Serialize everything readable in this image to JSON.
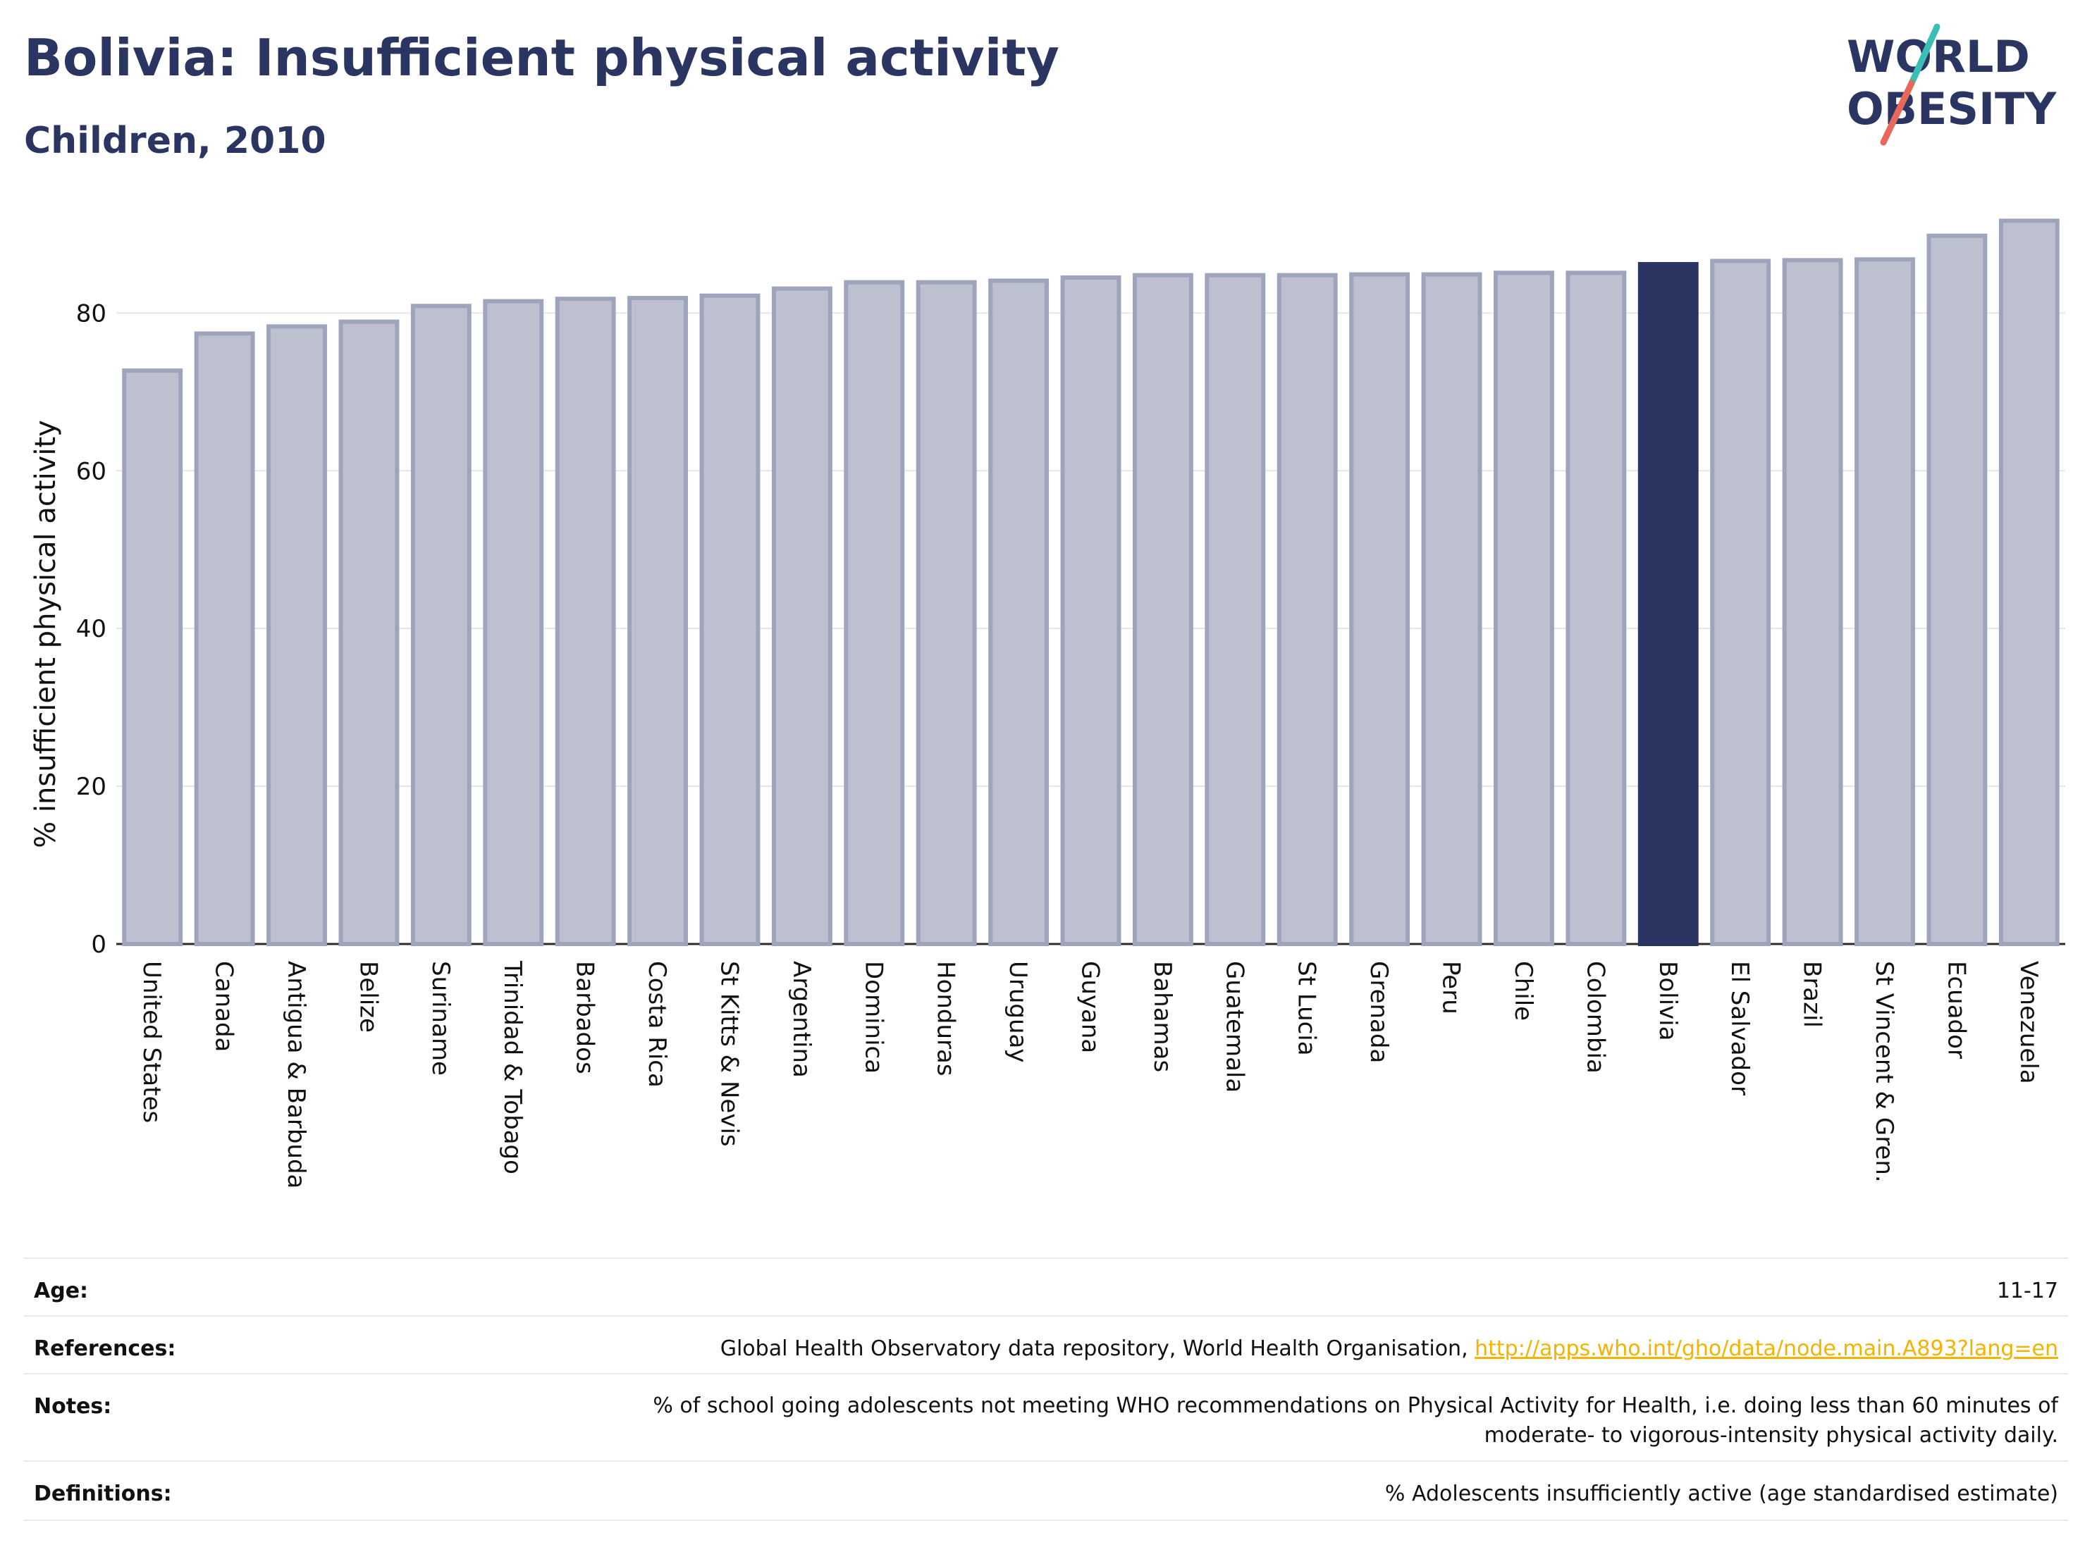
{
  "header": {
    "title": "Bolivia: Insufficient physical activity",
    "subtitle": "Children, 2010",
    "logo_text_line1": "WORLD",
    "logo_text_line2": "OBESITY"
  },
  "colors": {
    "title": "#2b3561",
    "bar_default": "#bcc0cf",
    "bar_default_stroke": "#9ea4bb",
    "bar_highlight": "#2b3561",
    "logo_teal": "#3bbfb5",
    "logo_red": "#e8685a",
    "link": "#f2b400"
  },
  "chart_data": {
    "type": "bar",
    "categories": [
      "United States",
      "Canada",
      "Antigua & Barbuda",
      "Belize",
      "Suriname",
      "Trinidad & Tobago",
      "Barbados",
      "Costa Rica",
      "St Kitts & Nevis",
      "Argentina",
      "Dominica",
      "Honduras",
      "Uruguay",
      "Guyana",
      "Bahamas",
      "Guatemala",
      "St Lucia",
      "Grenada",
      "Peru",
      "Chile",
      "Colombia",
      "Bolivia",
      "El Salvador",
      "Brazil",
      "St Vincent & Gren.",
      "Ecuador",
      "Venezuela"
    ],
    "values": [
      72.7,
      77.4,
      78.3,
      78.9,
      80.9,
      81.5,
      81.8,
      81.9,
      82.2,
      83.1,
      83.9,
      83.9,
      84.1,
      84.5,
      84.8,
      84.8,
      84.8,
      84.9,
      84.9,
      85.1,
      85.1,
      86.2,
      86.6,
      86.7,
      86.8,
      89.8,
      91.7
    ],
    "highlight": "Bolivia",
    "ylabel": "% insufficient physical activity",
    "xlabel": "",
    "ylim": [
      0,
      92
    ],
    "yticks": [
      0,
      20,
      40,
      60,
      80
    ],
    "grid": true
  },
  "meta": [
    {
      "key": "Age:",
      "value": "11-17"
    },
    {
      "key": "References:",
      "value": "Global Health Observatory data repository, World Health Organisation, ",
      "link": "http://apps.who.int/gho/data/node.main.A893?lang=en"
    },
    {
      "key": "Notes:",
      "value": "% of school going adolescents not meeting WHO recommendations on Physical Activity for Health, i.e. doing less than 60 minutes of moderate- to vigorous-intensity physical activity daily."
    },
    {
      "key": "Definitions:",
      "value": "% Adolescents insufficiently active (age standardised estimate)"
    }
  ]
}
